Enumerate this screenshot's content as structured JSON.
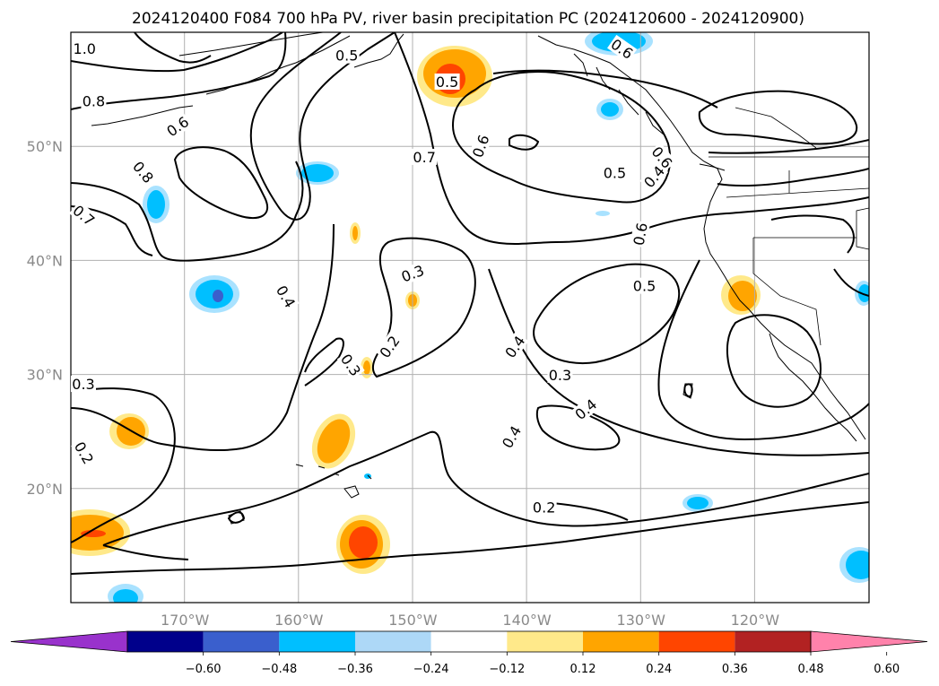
{
  "title": "2024120400 F084 700 hPa PV, river basin precipitation PC (2024120600 - 2024120900)",
  "map": {
    "lon_range": [
      -180,
      -110
    ],
    "lat_range": [
      10,
      60
    ],
    "lon_ticks": [
      {
        "value": -170,
        "label": "170°W"
      },
      {
        "value": -160,
        "label": "160°W"
      },
      {
        "value": -150,
        "label": "150°W"
      },
      {
        "value": -140,
        "label": "140°W"
      },
      {
        "value": -130,
        "label": "130°W"
      },
      {
        "value": -120,
        "label": "120°W"
      }
    ],
    "lat_ticks": [
      {
        "value": 50,
        "label": "50°N"
      },
      {
        "value": 40,
        "label": "40°N"
      },
      {
        "value": 30,
        "label": "30°N"
      },
      {
        "value": 20,
        "label": "20°N"
      }
    ],
    "contour_labels": [
      {
        "text": "1.0",
        "lon": -178.8,
        "lat": 58.5,
        "rot": 0
      },
      {
        "text": "0.8",
        "lon": -178.0,
        "lat": 53.9,
        "rot": 0
      },
      {
        "text": "0.6",
        "lon": -170.6,
        "lat": 51.7,
        "rot": -35
      },
      {
        "text": "0.8",
        "lon": -173.7,
        "lat": 47.7,
        "rot": 50
      },
      {
        "text": "0.7",
        "lon": -181.7,
        "lat": 43.9,
        "rot": 40
      },
      {
        "text": "0.5",
        "lon": -155.8,
        "lat": 57.9,
        "rot": 0
      },
      {
        "text": "0.5",
        "lon": -147.0,
        "lat": 55.6,
        "rot": 0
      },
      {
        "text": "0.7",
        "lon": -149.0,
        "lat": 49.0,
        "rot": 0
      },
      {
        "text": "0.6",
        "lon": -144.0,
        "lat": 50.0,
        "rot": -70
      },
      {
        "text": "0.6",
        "lon": -131.7,
        "lat": 58.5,
        "rot": 35
      },
      {
        "text": "0.6",
        "lon": -128.2,
        "lat": 49.0,
        "rot": 50
      },
      {
        "text": "0.5",
        "lon": -132.3,
        "lat": 47.6,
        "rot": 0
      },
      {
        "text": "0.4",
        "lon": -128.8,
        "lat": 47.3,
        "rot": -50
      },
      {
        "text": "0.6",
        "lon": -130.0,
        "lat": 42.3,
        "rot": -80
      },
      {
        "text": "0.5",
        "lon": -129.7,
        "lat": 37.7,
        "rot": 0
      },
      {
        "text": "0.4",
        "lon": -161.2,
        "lat": 36.8,
        "rot": 60
      },
      {
        "text": "0.3",
        "lon": -155.5,
        "lat": 30.8,
        "rot": 55
      },
      {
        "text": "0.3",
        "lon": -150.0,
        "lat": 38.8,
        "rot": -20
      },
      {
        "text": "0.2",
        "lon": -152.0,
        "lat": 32.4,
        "rot": -55
      },
      {
        "text": "0.4",
        "lon": -141.0,
        "lat": 32.4,
        "rot": -55
      },
      {
        "text": "0.3",
        "lon": -137.1,
        "lat": 29.9,
        "rot": 0
      },
      {
        "text": "0.4",
        "lon": -134.8,
        "lat": 26.9,
        "rot": -40
      },
      {
        "text": "0.4",
        "lon": -141.3,
        "lat": 24.5,
        "rot": -60
      },
      {
        "text": "0.2",
        "lon": -138.5,
        "lat": 18.3,
        "rot": 0
      },
      {
        "text": "0.3",
        "lon": -186.0,
        "lat": 29.1,
        "rot": 0
      },
      {
        "text": "0.2",
        "lon": -183.7,
        "lat": 23.1,
        "rot": 60
      }
    ],
    "anomaly_colors": {
      "neg_deep": "#00008b",
      "neg_med": "#3a5fcd",
      "neg": "#00bfff",
      "neg_light": "#a9e2ff",
      "pos_light": "#ffe98a",
      "pos": "#ffa500",
      "pos_med": "#ff4500",
      "pos_deep": "#b22222"
    }
  },
  "colorbar": {
    "colors": [
      "#9932cc",
      "#00008b",
      "#3a5fcd",
      "#00bfff",
      "#add8f7",
      "#ffffff",
      "#ffe98a",
      "#ffa500",
      "#ff4500",
      "#b22222",
      "#ff82ab"
    ],
    "tick_labels": [
      "−0.60",
      "−0.48",
      "−0.36",
      "−0.24",
      "−0.12",
      "0.12",
      "0.24",
      "0.36",
      "0.48",
      "0.60"
    ]
  }
}
